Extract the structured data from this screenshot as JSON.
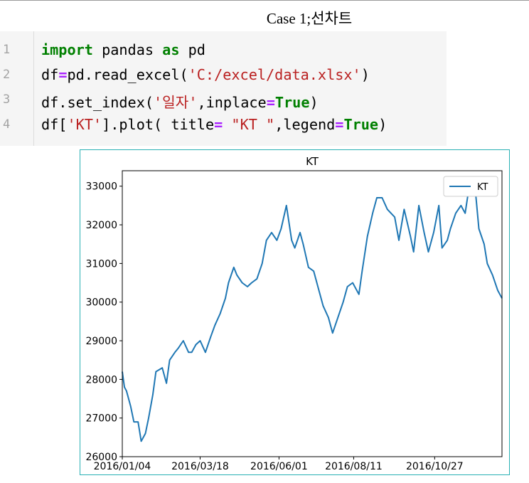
{
  "heading": "Case 1;선차트",
  "code": {
    "line_numbers": [
      "1",
      "2",
      "3",
      "4"
    ],
    "lines": [
      [
        {
          "t": "import",
          "k": "kw"
        },
        {
          "t": " pandas ",
          "k": "plain"
        },
        {
          "t": "as",
          "k": "kw"
        },
        {
          "t": " pd",
          "k": "plain"
        }
      ],
      [
        {
          "t": "df",
          "k": "plain"
        },
        {
          "t": "=",
          "k": "op"
        },
        {
          "t": "pd.read_excel(",
          "k": "plain"
        },
        {
          "t": "'C:/excel/data.xlsx'",
          "k": "str"
        },
        {
          "t": ")",
          "k": "plain"
        }
      ],
      [
        {
          "t": "df.set_index(",
          "k": "plain"
        },
        {
          "t": "'일자'",
          "k": "str"
        },
        {
          "t": ",inplace",
          "k": "plain"
        },
        {
          "t": "=",
          "k": "op"
        },
        {
          "t": "True",
          "k": "kw"
        },
        {
          "t": ")",
          "k": "plain"
        }
      ],
      [
        {
          "t": "df[",
          "k": "plain"
        },
        {
          "t": "'KT'",
          "k": "str"
        },
        {
          "t": "].plot( title",
          "k": "plain"
        },
        {
          "t": "=",
          "k": "op"
        },
        {
          "t": " ",
          "k": "plain"
        },
        {
          "t": "\"KT \"",
          "k": "str"
        },
        {
          "t": ",legend",
          "k": "plain"
        },
        {
          "t": "=",
          "k": "op"
        },
        {
          "t": "True",
          "k": "kw"
        },
        {
          "t": ")",
          "k": "plain"
        }
      ]
    ]
  },
  "chart_data": {
    "type": "line",
    "title": "KT",
    "xlabel": "",
    "ylabel": "",
    "grid": false,
    "legend": "top-right",
    "series_color": "#1f77b4",
    "ylim": [
      26000,
      33400
    ],
    "xlim": [
      "2016-01-04",
      "2016-12-30"
    ],
    "yticks": [
      26000,
      27000,
      28000,
      29000,
      30000,
      31000,
      32000,
      33000
    ],
    "xticks": [
      "2016/01/04",
      "2016/03/18",
      "2016/06/01",
      "2016/08/11",
      "2016/10/27"
    ],
    "series": [
      {
        "name": "KT",
        "x": [
          "2016-01-04",
          "2016-01-06",
          "2016-01-08",
          "2016-01-12",
          "2016-01-15",
          "2016-01-19",
          "2016-01-22",
          "2016-01-26",
          "2016-01-29",
          "2016-02-02",
          "2016-02-05",
          "2016-02-11",
          "2016-02-15",
          "2016-02-18",
          "2016-02-23",
          "2016-02-26",
          "2016-03-02",
          "2016-03-07",
          "2016-03-10",
          "2016-03-14",
          "2016-03-18",
          "2016-03-23",
          "2016-03-28",
          "2016-04-01",
          "2016-04-06",
          "2016-04-11",
          "2016-04-14",
          "2016-04-19",
          "2016-04-22",
          "2016-04-27",
          "2016-05-02",
          "2016-05-06",
          "2016-05-11",
          "2016-05-16",
          "2016-05-20",
          "2016-05-25",
          "2016-05-30",
          "2016-06-03",
          "2016-06-08",
          "2016-06-13",
          "2016-06-16",
          "2016-06-21",
          "2016-06-24",
          "2016-06-29",
          "2016-07-04",
          "2016-07-08",
          "2016-07-13",
          "2016-07-18",
          "2016-07-22",
          "2016-07-27",
          "2016-08-01",
          "2016-08-05",
          "2016-08-10",
          "2016-08-16",
          "2016-08-19",
          "2016-08-24",
          "2016-08-29",
          "2016-09-02",
          "2016-09-07",
          "2016-09-12",
          "2016-09-19",
          "2016-09-23",
          "2016-09-28",
          "2016-10-04",
          "2016-10-07",
          "2016-10-12",
          "2016-10-17",
          "2016-10-21",
          "2016-10-26",
          "2016-10-31",
          "2016-11-03",
          "2016-11-08",
          "2016-11-11",
          "2016-11-16",
          "2016-11-21",
          "2016-11-25",
          "2016-11-30",
          "2016-12-05",
          "2016-12-08",
          "2016-12-13",
          "2016-12-16",
          "2016-12-21",
          "2016-12-26",
          "2016-12-30"
        ],
        "values": [
          28200,
          27800,
          27700,
          27300,
          26900,
          26900,
          26400,
          26600,
          27000,
          27600,
          28200,
          28300,
          27900,
          28500,
          28700,
          28800,
          29000,
          28700,
          28700,
          28900,
          29000,
          28700,
          29100,
          29400,
          29700,
          30100,
          30500,
          30900,
          30700,
          30500,
          30400,
          30500,
          30600,
          31000,
          31600,
          31800,
          31600,
          31900,
          32500,
          31600,
          31400,
          31800,
          31500,
          30900,
          30800,
          30400,
          29900,
          29600,
          29200,
          29600,
          30000,
          30400,
          30500,
          30200,
          30800,
          31700,
          32300,
          32700,
          32700,
          32400,
          32200,
          31600,
          32400,
          31700,
          31300,
          32500,
          31800,
          31300,
          31800,
          32500,
          31400,
          31600,
          31900,
          32300,
          32500,
          32300,
          33200,
          32800,
          31900,
          31500,
          31000,
          30700,
          30300,
          30100
        ]
      }
    ]
  }
}
